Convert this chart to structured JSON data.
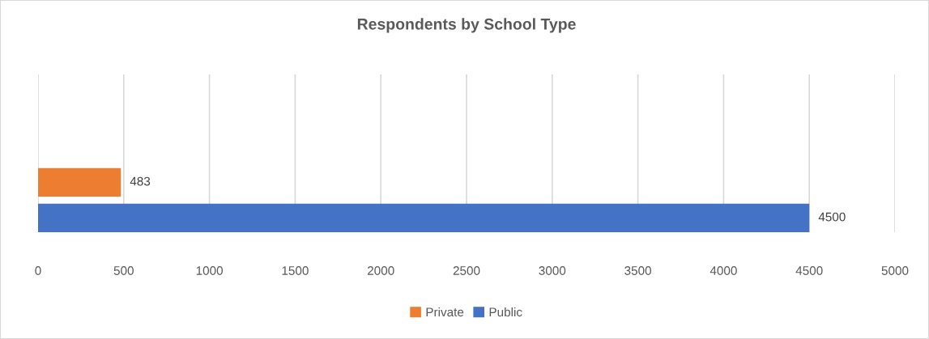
{
  "chart_data": {
    "type": "bar",
    "orientation": "horizontal",
    "title": "Respondents by School Type",
    "categories": [
      null
    ],
    "series": [
      {
        "name": "Private",
        "color": "#ed7d31",
        "values": [
          483
        ]
      },
      {
        "name": "Public",
        "color": "#4472c4",
        "values": [
          4500
        ]
      }
    ],
    "xlim": [
      0,
      5000
    ],
    "xticks": [
      0,
      500,
      1000,
      1500,
      2000,
      2500,
      3000,
      3500,
      4000,
      4500,
      5000
    ],
    "grid": "x",
    "legend": "bottom",
    "data_labels": true,
    "tick_labels": "x"
  }
}
